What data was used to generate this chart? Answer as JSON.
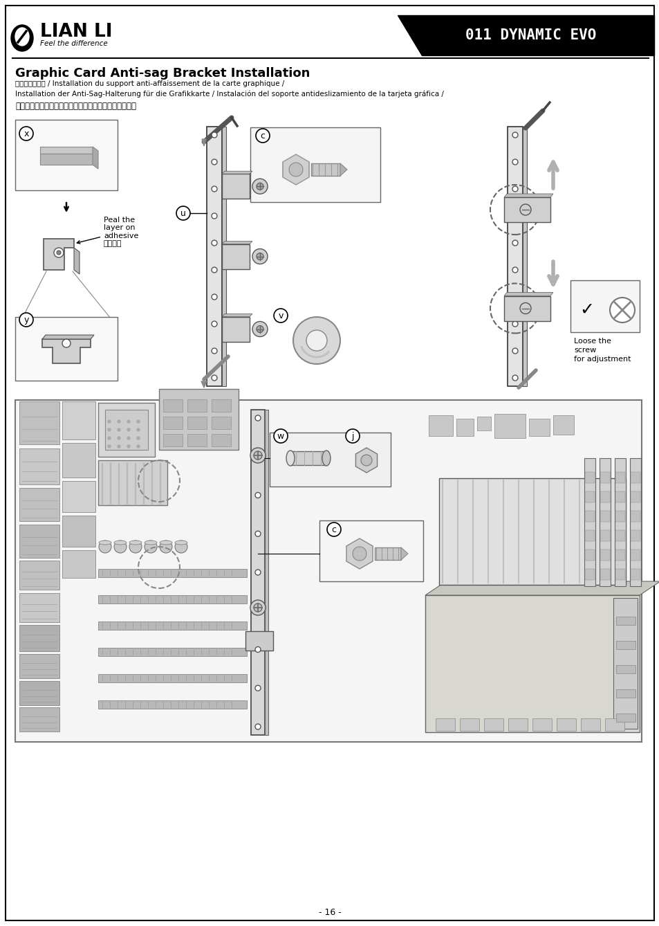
{
  "page_bg": "#ffffff",
  "border_color": "#000000",
  "title_main": "Graphic Card Anti-sag Bracket Installation",
  "subtitle_line1": "顯卡支支架安装 / Installation du support anti-affaissement de la carte graphique /",
  "subtitle_line2": "Installation der Anti-Sag-Halterung für die Grafikkarte / Instalación del soporte antideslizamiento de la tarjeta gráfica /",
  "subtitle_line3": "グラフィックカードのたるみ防止ブラケットの取り付け",
  "brand_name": "LIAN LI",
  "brand_sub": "Feel the difference",
  "product_name": "011 DYNAMIC EVO",
  "page_number": "- 16 -",
  "annotation_peal": "Peal the\nlayer on\nadhesive\n撇開背膠",
  "annotation_loose": "Loose the\nscrew\nfor adjustment"
}
